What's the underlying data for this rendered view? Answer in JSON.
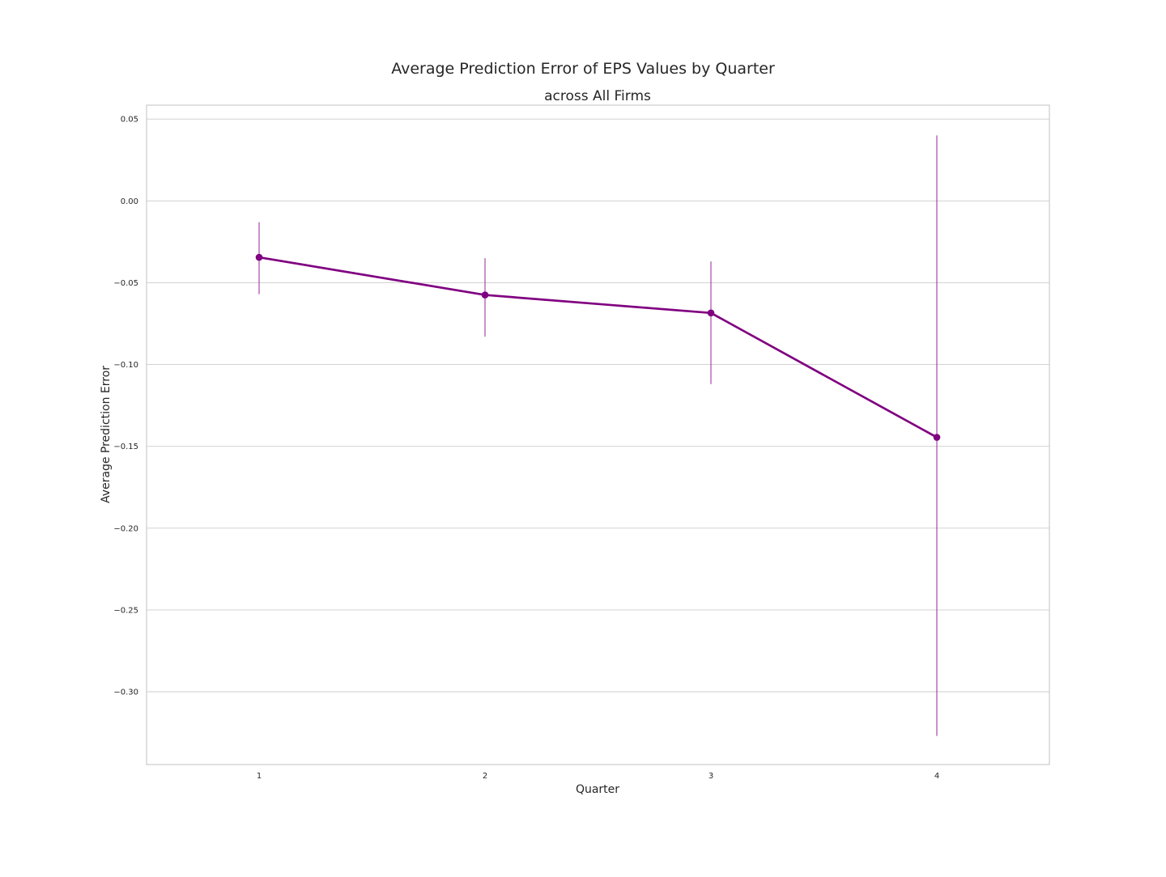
{
  "chart_data": {
    "type": "line",
    "title": "Average Prediction Error of EPS Values by Quarter",
    "subtitle": "across All Firms",
    "xlabel": "Quarter",
    "ylabel": "Average Prediction Error",
    "categories": [
      "1",
      "2",
      "3",
      "4"
    ],
    "series": [
      {
        "values": [
          -0.0345,
          -0.0575,
          -0.0685,
          -0.1445
        ],
        "error_low": [
          -0.057,
          -0.083,
          -0.112,
          -0.327
        ],
        "error_high": [
          -0.013,
          -0.035,
          -0.037,
          0.04
        ]
      }
    ],
    "ylim": [
      -0.3445,
      0.0585
    ],
    "y_ticks": [
      0.05,
      0.0,
      -0.05,
      -0.1,
      -0.15,
      -0.2,
      -0.25,
      -0.3
    ],
    "y_tick_labels": [
      "0.05",
      "0.00",
      "−0.05",
      "−0.10",
      "−0.15",
      "−0.20",
      "−0.25",
      "−0.30"
    ],
    "grid": true,
    "legend": "none",
    "colors": {
      "series": "#800080",
      "grid": "#cccccc",
      "frame": "#cccccc",
      "text": "#262626"
    }
  }
}
